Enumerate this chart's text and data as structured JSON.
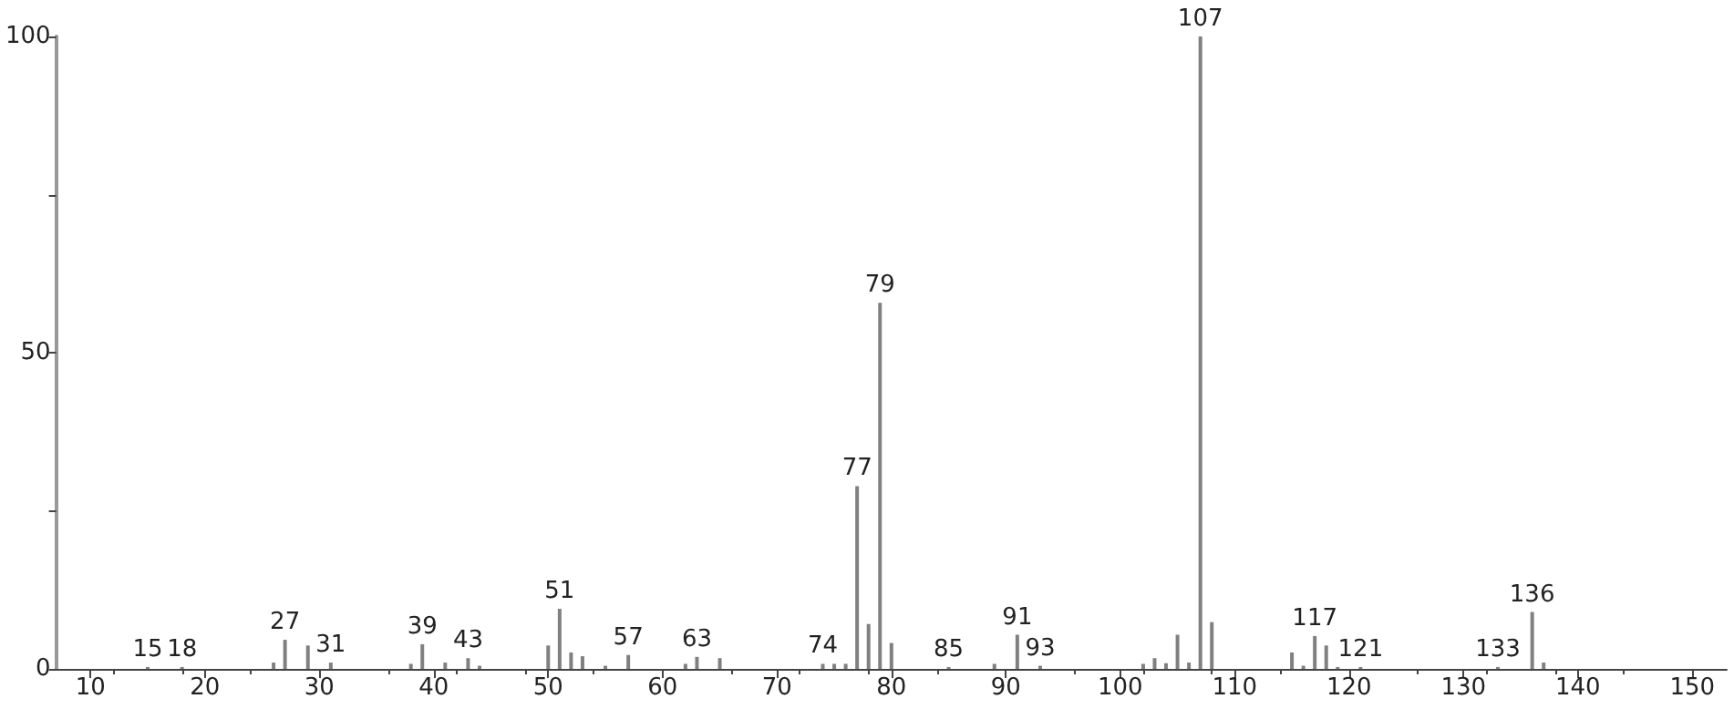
{
  "chart_data": {
    "type": "bar",
    "x": [
      15,
      18,
      26,
      27,
      29,
      31,
      38,
      39,
      41,
      43,
      44,
      50,
      51,
      52,
      53,
      55,
      57,
      62,
      63,
      65,
      74,
      75,
      76,
      77,
      78,
      79,
      80,
      85,
      89,
      91,
      93,
      102,
      103,
      104,
      105,
      106,
      107,
      108,
      115,
      116,
      117,
      118,
      119,
      121,
      133,
      136,
      137
    ],
    "series": [
      {
        "color": "#808080",
        "values": [
          0.3,
          0.3,
          1,
          4.6,
          3.7,
          1,
          0.8,
          3.9,
          1,
          1.7,
          0.5,
          3.7,
          9.5,
          2.6,
          2,
          0.5,
          2.2,
          0.8,
          1.9,
          1.7,
          0.8,
          0.8,
          0.8,
          28.9,
          7.1,
          57.9,
          4.1,
          0.3,
          0.8,
          5.4,
          0.5,
          0.8,
          1.7,
          0.9,
          5.4,
          1,
          100,
          7.4,
          2.6,
          0.5,
          5.2,
          3.7,
          0.3,
          0.3,
          0.3,
          9,
          1
        ]
      }
    ],
    "xlim": [
      7,
      153
    ],
    "xticks": [
      10,
      20,
      30,
      40,
      50,
      60,
      70,
      80,
      90,
      100,
      110,
      120,
      130,
      140,
      150
    ],
    "ylim": [
      0,
      100
    ],
    "yticks": [
      0,
      {
        "value": 25,
        "label": null
      },
      50,
      {
        "value": 75,
        "label": null
      },
      100
    ],
    "grid": false,
    "annotations": [
      {
        "text": "15",
        "x": 15,
        "y": 0.3
      },
      {
        "text": "18",
        "x": 18,
        "y": 0.3
      },
      {
        "text": "27",
        "x": 27,
        "y": 4.6
      },
      {
        "text": "31",
        "x": 31,
        "y": 1
      },
      {
        "text": "39",
        "x": 39,
        "y": 3.9
      },
      {
        "text": "43",
        "x": 43,
        "y": 1.7
      },
      {
        "text": "51",
        "x": 51,
        "y": 9.5
      },
      {
        "text": "57",
        "x": 57,
        "y": 2.2
      },
      {
        "text": "63",
        "x": 63,
        "y": 1.9
      },
      {
        "text": "74",
        "x": 74,
        "y": 0.8
      },
      {
        "text": "77",
        "x": 77,
        "y": 28.9
      },
      {
        "text": "79",
        "x": 79,
        "y": 57.9
      },
      {
        "text": "85",
        "x": 85,
        "y": 0.3
      },
      {
        "text": "91",
        "x": 91,
        "y": 5.4
      },
      {
        "text": "93",
        "x": 93,
        "y": 0.5
      },
      {
        "text": "107",
        "x": 107,
        "y": 100
      },
      {
        "text": "117",
        "x": 117,
        "y": 5.2
      },
      {
        "text": "121",
        "x": 121,
        "y": 0.3
      },
      {
        "text": "133",
        "x": 133,
        "y": 0.3
      },
      {
        "text": "136",
        "x": 136,
        "y": 9
      }
    ]
  }
}
